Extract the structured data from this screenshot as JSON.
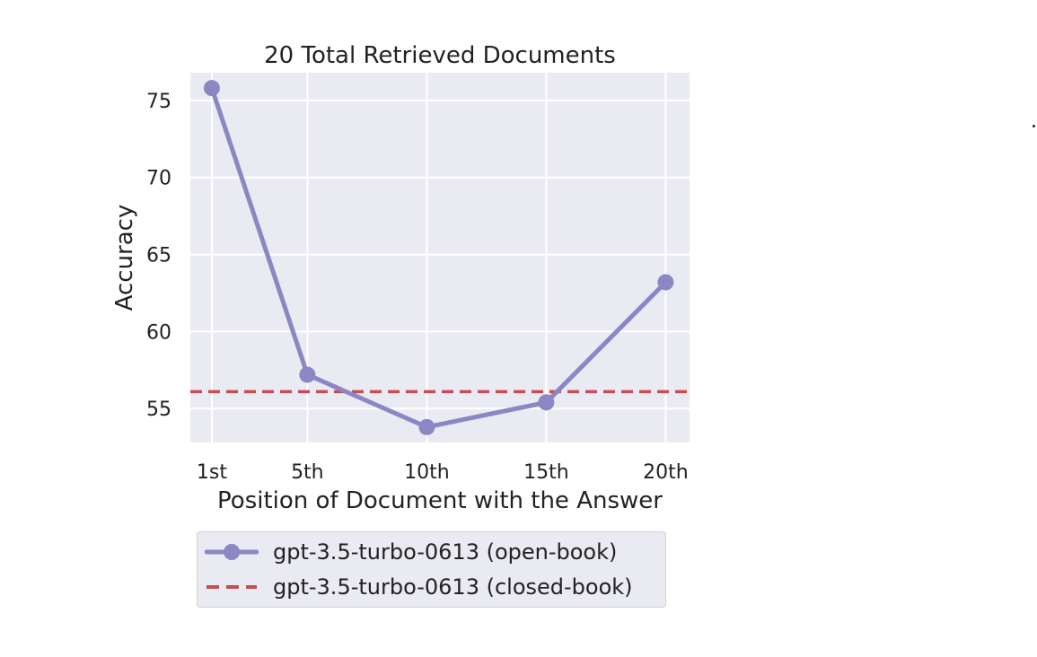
{
  "chart_data": {
    "type": "line",
    "title": "20 Total Retrieved Documents",
    "xlabel": "Position of Document with the Answer",
    "ylabel": "Accuracy",
    "x": [
      1,
      5,
      10,
      15,
      20
    ],
    "x_tick_labels": [
      "1st",
      "5th",
      "10th",
      "15th",
      "20th"
    ],
    "y_ticks": [
      55,
      60,
      65,
      70,
      75
    ],
    "ylim": [
      52.8,
      76.8
    ],
    "xlim": [
      0.1,
      21.0
    ],
    "grid": true,
    "series": [
      {
        "name": "gpt-3.5-turbo-0613 (open-book)",
        "style": "line-marker",
        "color": "#8c86c4",
        "values": [
          75.8,
          57.2,
          53.8,
          55.4,
          63.2
        ]
      },
      {
        "name": "gpt-3.5-turbo-0613 (closed-book)",
        "style": "dashed-hline",
        "color": "#c44e52",
        "value": 56.1
      }
    ],
    "legend_placement": "below"
  },
  "colors": {
    "plot_background": "#eaeaf2",
    "grid": "#ffffff"
  }
}
